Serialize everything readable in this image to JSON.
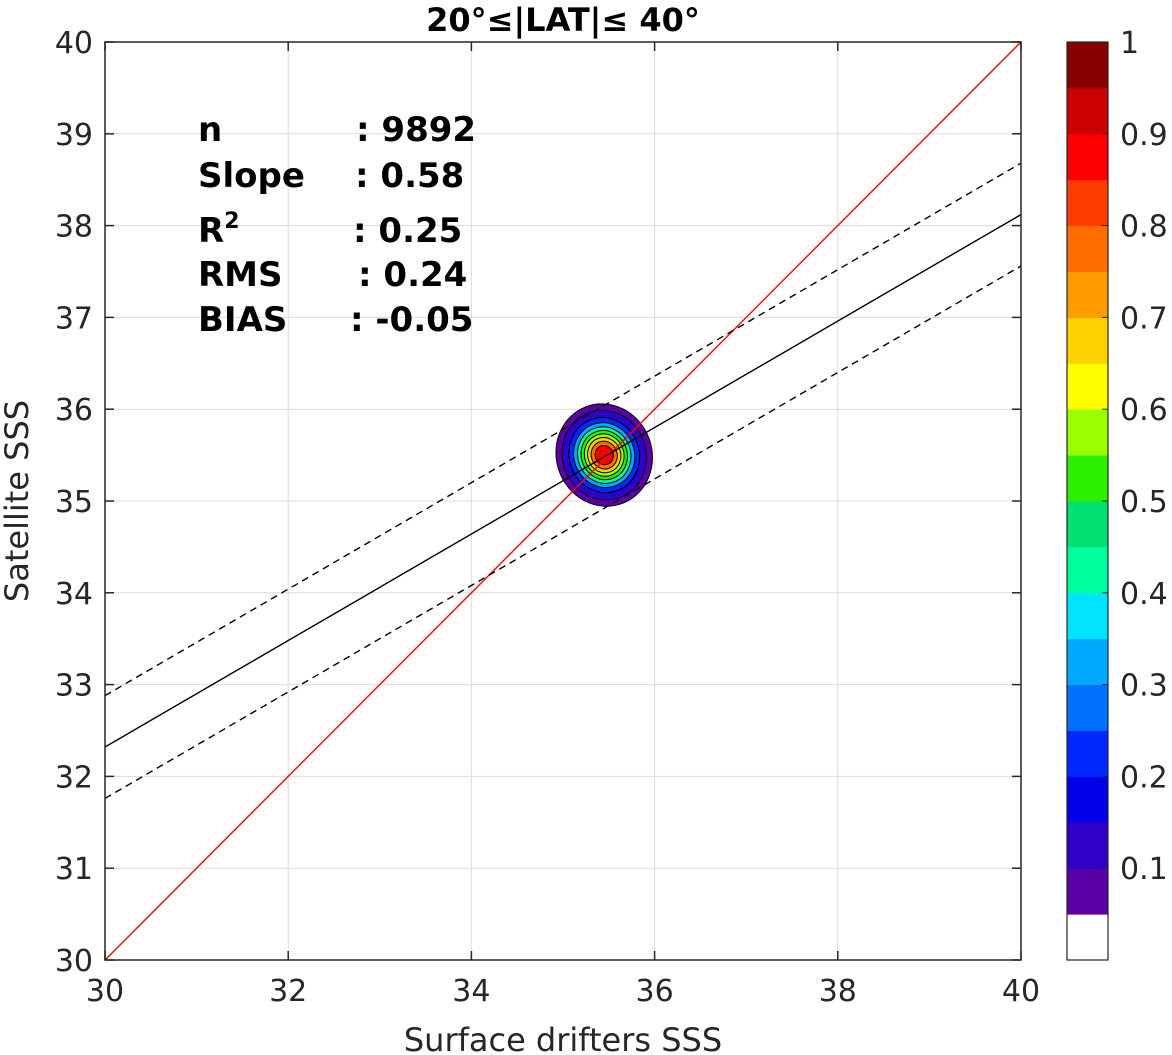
{
  "chart_data": {
    "type": "heatmap",
    "subtype": "density-contour scatter with regression lines",
    "title": "20°≤|LAT|≤ 40°",
    "xlabel": "Surface drifters SSS",
    "ylabel": "Satellite SSS",
    "xlim": [
      30,
      40
    ],
    "ylim": [
      30,
      40
    ],
    "xticks": [
      30,
      32,
      34,
      36,
      38,
      40
    ],
    "yticks": [
      30,
      31,
      32,
      33,
      34,
      35,
      36,
      37,
      38,
      39,
      40
    ],
    "grid": true,
    "stats": [
      {
        "label": "n",
        "sep": ":",
        "value": "9892"
      },
      {
        "label": "Slope",
        "sep": ":",
        "value": "0.58"
      },
      {
        "label": "R",
        "sup": "2",
        "sep": ":",
        "value": "0.25"
      },
      {
        "label": "RMS",
        "sep": ":",
        "value": "0.24"
      },
      {
        "label": "BIAS",
        "sep": ":",
        "value": "-0.05"
      }
    ],
    "lines": [
      {
        "kind": "identity",
        "color": "#ff0000",
        "style": "solid",
        "points": [
          [
            30,
            30
          ],
          [
            40,
            40
          ]
        ]
      },
      {
        "kind": "regression",
        "color": "#000000",
        "style": "solid",
        "points": [
          [
            30,
            32.32
          ],
          [
            40,
            38.12
          ]
        ]
      },
      {
        "kind": "regression-upper",
        "color": "#000000",
        "style": "dashed",
        "points": [
          [
            30,
            32.88
          ],
          [
            40,
            38.68
          ]
        ]
      },
      {
        "kind": "regression-lower",
        "color": "#000000",
        "style": "dashed",
        "points": [
          [
            30,
            31.76
          ],
          [
            40,
            37.56
          ]
        ]
      }
    ],
    "density_peak": {
      "x": 35.45,
      "y": 35.5
    },
    "density_spread": {
      "sx": 0.52,
      "sy": 0.56
    },
    "density_levels": [
      0.05,
      0.1,
      0.2,
      0.3,
      0.4,
      0.5,
      0.6,
      0.7,
      0.8,
      0.9
    ],
    "colorbar": {
      "ticks": [
        "0.1",
        "0.2",
        "0.3",
        "0.4",
        "0.5",
        "0.6",
        "0.7",
        "0.8",
        "0.9",
        "1"
      ],
      "tick_values": [
        0.1,
        0.2,
        0.3,
        0.4,
        0.5,
        0.6,
        0.7,
        0.8,
        0.9,
        1.0
      ],
      "range": [
        0,
        1
      ],
      "colors": [
        "#ffffff",
        "#5b00a6",
        "#2e00c8",
        "#0000e6",
        "#0028ff",
        "#0070ff",
        "#00a8ff",
        "#00e4ff",
        "#00ff9e",
        "#00e070",
        "#2cf000",
        "#9cff00",
        "#ffff00",
        "#ffd000",
        "#ff9c00",
        "#ff6c00",
        "#ff3c00",
        "#ff0000",
        "#cc0000",
        "#8a0000"
      ]
    }
  }
}
